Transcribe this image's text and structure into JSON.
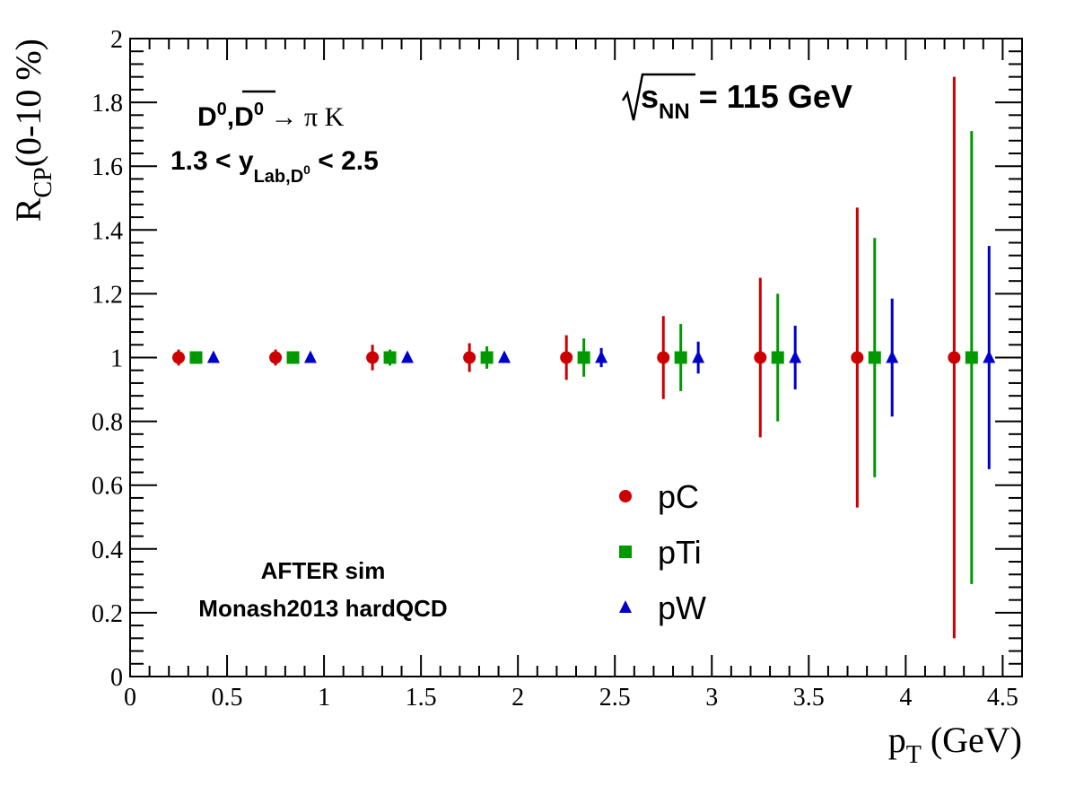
{
  "chart_data": {
    "type": "scatter",
    "title": "",
    "xlabel": {
      "main": "p",
      "sub": "T",
      "suffix": " (GeV)"
    },
    "ylabel": {
      "main": "R",
      "sub": "CP",
      "suffix": "(0-10 %)"
    },
    "xlim": [
      0,
      4.6
    ],
    "ylim": [
      0,
      2
    ],
    "x_major_ticks": [
      0,
      0.5,
      1,
      1.5,
      2,
      2.5,
      3,
      3.5,
      4,
      4.5
    ],
    "x_tick_labels": [
      "0",
      "0.5",
      "1",
      "1.5",
      "2",
      "2.5",
      "3",
      "3.5",
      "4",
      "4.5"
    ],
    "y_major_ticks": [
      0,
      0.2,
      0.4,
      0.6,
      0.8,
      1,
      1.2,
      1.4,
      1.6,
      1.8,
      2
    ],
    "y_tick_labels": [
      "0",
      "0.2",
      "0.4",
      "0.6",
      "0.8",
      "1",
      "1.2",
      "1.4",
      "1.6",
      "1.8",
      "2"
    ],
    "grid": false,
    "legend_position": "bottom-center",
    "series": [
      {
        "name": "pC",
        "marker": "circle",
        "color": "#cc0000",
        "x": [
          0.25,
          0.75,
          1.25,
          1.75,
          2.25,
          2.75,
          3.25,
          3.75,
          4.25
        ],
        "y": [
          1,
          1,
          1,
          1,
          1,
          1,
          1,
          1,
          1
        ],
        "err": [
          0.025,
          0.025,
          0.04,
          0.045,
          0.07,
          0.13,
          0.25,
          0.47,
          0.88
        ]
      },
      {
        "name": "pTi",
        "marker": "square",
        "color": "#009900",
        "x": [
          0.34,
          0.84,
          1.34,
          1.84,
          2.34,
          2.84,
          3.34,
          3.84,
          4.34
        ],
        "y": [
          1,
          1,
          1,
          1,
          1,
          1,
          1,
          1,
          1
        ],
        "err": [
          0.015,
          0.015,
          0.025,
          0.035,
          0.06,
          0.105,
          0.2,
          0.375,
          0.71
        ]
      },
      {
        "name": "pW",
        "marker": "triangle",
        "color": "#0000cc",
        "x": [
          0.43,
          0.93,
          1.43,
          1.93,
          2.43,
          2.93,
          3.43,
          3.93,
          4.43
        ],
        "y": [
          1,
          1,
          1,
          1,
          1,
          1,
          1,
          1,
          1
        ],
        "err": [
          0.005,
          0.008,
          0.012,
          0.015,
          0.03,
          0.05,
          0.1,
          0.185,
          0.35
        ]
      }
    ],
    "annotations": {
      "decay": {
        "d0": "D",
        "sup0": "0",
        "comma": ",",
        "d0bar": "D",
        "sup0bar": "0",
        "arrow": " → π K"
      },
      "rapidity": {
        "pre": "1.3 < y",
        "sub": "Lab,D",
        "subsup": "0",
        "post": " < 2.5"
      },
      "energy": {
        "s": "s",
        "sub": "NN",
        "post": " = 115 GeV"
      },
      "sim": {
        "line1": "AFTER sim",
        "line2": "Monash2013 hardQCD"
      }
    }
  }
}
